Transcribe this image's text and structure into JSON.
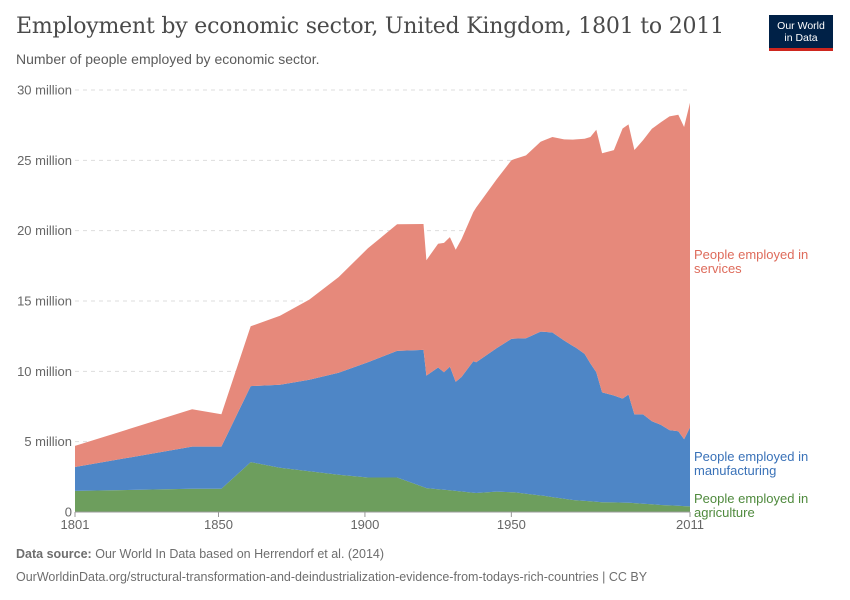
{
  "header": {
    "title": "Employment by economic sector, United Kingdom, 1801 to 2011",
    "subtitle": "Number of people employed by economic sector."
  },
  "logo": {
    "line1": "Our World",
    "line2": "in Data"
  },
  "footer": {
    "source_label": "Data source:",
    "source_text": "Our World In Data based on Herrendorf et al. (2014)",
    "url_text": "OurWorldinData.org/structural-transformation-and-deindustrialization-evidence-from-todays-rich-countries | CC BY"
  },
  "chart_data": {
    "type": "area",
    "stacked": true,
    "grid": "horizontal dashed",
    "legend": "right, inline labels",
    "x_ticks": [
      1801,
      1850,
      1900,
      1950,
      2011
    ],
    "x_tick_labels": [
      "1801",
      "1850",
      "1900",
      "1950",
      "2011"
    ],
    "xlim": [
      1801,
      2011
    ],
    "y_ticks": [
      0,
      5000000,
      10000000,
      15000000,
      20000000,
      25000000,
      30000000
    ],
    "y_tick_labels": [
      "0",
      "5 million",
      "10 million",
      "15 million",
      "20 million",
      "25 million",
      "30 million"
    ],
    "ylim": [
      0,
      30000000
    ],
    "series": [
      {
        "name": "People employed in agriculture",
        "label_lines": [
          "People employed in",
          "agriculture"
        ],
        "color": "#6d9e5d",
        "points": [
          [
            1801,
            1500000
          ],
          [
            1841,
            1650000
          ],
          [
            1851,
            1650000
          ],
          [
            1861,
            3550000
          ],
          [
            1871,
            3150000
          ],
          [
            1881,
            2900000
          ],
          [
            1891,
            2650000
          ],
          [
            1901,
            2450000
          ],
          [
            1911,
            2450000
          ],
          [
            1921,
            1700000
          ],
          [
            1931,
            1500000
          ],
          [
            1938,
            1350000
          ],
          [
            1945,
            1450000
          ],
          [
            1951,
            1400000
          ],
          [
            1961,
            1150000
          ],
          [
            1971,
            850000
          ],
          [
            1981,
            700000
          ],
          [
            1991,
            650000
          ],
          [
            2001,
            500000
          ],
          [
            2011,
            400000
          ]
        ]
      },
      {
        "name": "People employed in manufacturing",
        "label_lines": [
          "People employed in",
          "manufacturing"
        ],
        "color": "#4e86c6",
        "points": [
          [
            1801,
            1700000
          ],
          [
            1841,
            3000000
          ],
          [
            1851,
            3000000
          ],
          [
            1861,
            5400000
          ],
          [
            1871,
            5900000
          ],
          [
            1881,
            6500000
          ],
          [
            1891,
            7250000
          ],
          [
            1901,
            8200000
          ],
          [
            1911,
            9000000
          ],
          [
            1920,
            9750000
          ],
          [
            1921,
            8000000
          ],
          [
            1925,
            8650000
          ],
          [
            1927,
            8350000
          ],
          [
            1929,
            8800000
          ],
          [
            1931,
            7750000
          ],
          [
            1933,
            8150000
          ],
          [
            1937,
            9350000
          ],
          [
            1938,
            9300000
          ],
          [
            1945,
            10200000
          ],
          [
            1950,
            10900000
          ],
          [
            1955,
            11050000
          ],
          [
            1960,
            11650000
          ],
          [
            1964,
            11700000
          ],
          [
            1968,
            11250000
          ],
          [
            1972,
            10850000
          ],
          [
            1975,
            10450000
          ],
          [
            1977,
            9800000
          ],
          [
            1979,
            9200000
          ],
          [
            1981,
            7800000
          ],
          [
            1985,
            7600000
          ],
          [
            1988,
            7400000
          ],
          [
            1990,
            7700000
          ],
          [
            1992,
            6300000
          ],
          [
            1995,
            6350000
          ],
          [
            1998,
            5900000
          ],
          [
            2001,
            5700000
          ],
          [
            2004,
            5350000
          ],
          [
            2007,
            5300000
          ],
          [
            2009,
            4750000
          ],
          [
            2011,
            5600000
          ]
        ]
      },
      {
        "name": "People employed in services",
        "label_lines": [
          "People employed in",
          "services"
        ],
        "color": "#e6897b",
        "points": [
          [
            1801,
            1500000
          ],
          [
            1841,
            2650000
          ],
          [
            1851,
            2300000
          ],
          [
            1861,
            4250000
          ],
          [
            1871,
            4900000
          ],
          [
            1881,
            5700000
          ],
          [
            1891,
            6800000
          ],
          [
            1901,
            8100000
          ],
          [
            1911,
            9000000
          ],
          [
            1920,
            8950000
          ],
          [
            1921,
            8200000
          ],
          [
            1925,
            8800000
          ],
          [
            1927,
            9200000
          ],
          [
            1929,
            9200000
          ],
          [
            1931,
            9400000
          ],
          [
            1933,
            9800000
          ],
          [
            1937,
            10600000
          ],
          [
            1938,
            11000000
          ],
          [
            1945,
            12000000
          ],
          [
            1950,
            12700000
          ],
          [
            1955,
            13000000
          ],
          [
            1960,
            13500000
          ],
          [
            1964,
            13900000
          ],
          [
            1968,
            14300000
          ],
          [
            1972,
            14800000
          ],
          [
            1975,
            15300000
          ],
          [
            1977,
            16100000
          ],
          [
            1979,
            17250000
          ],
          [
            1981,
            17000000
          ],
          [
            1985,
            17450000
          ],
          [
            1988,
            19200000
          ],
          [
            1990,
            19200000
          ],
          [
            1992,
            18800000
          ],
          [
            1995,
            19500000
          ],
          [
            1998,
            20800000
          ],
          [
            2001,
            21500000
          ],
          [
            2004,
            22300000
          ],
          [
            2007,
            22500000
          ],
          [
            2009,
            22200000
          ],
          [
            2011,
            23100000
          ]
        ]
      }
    ]
  }
}
